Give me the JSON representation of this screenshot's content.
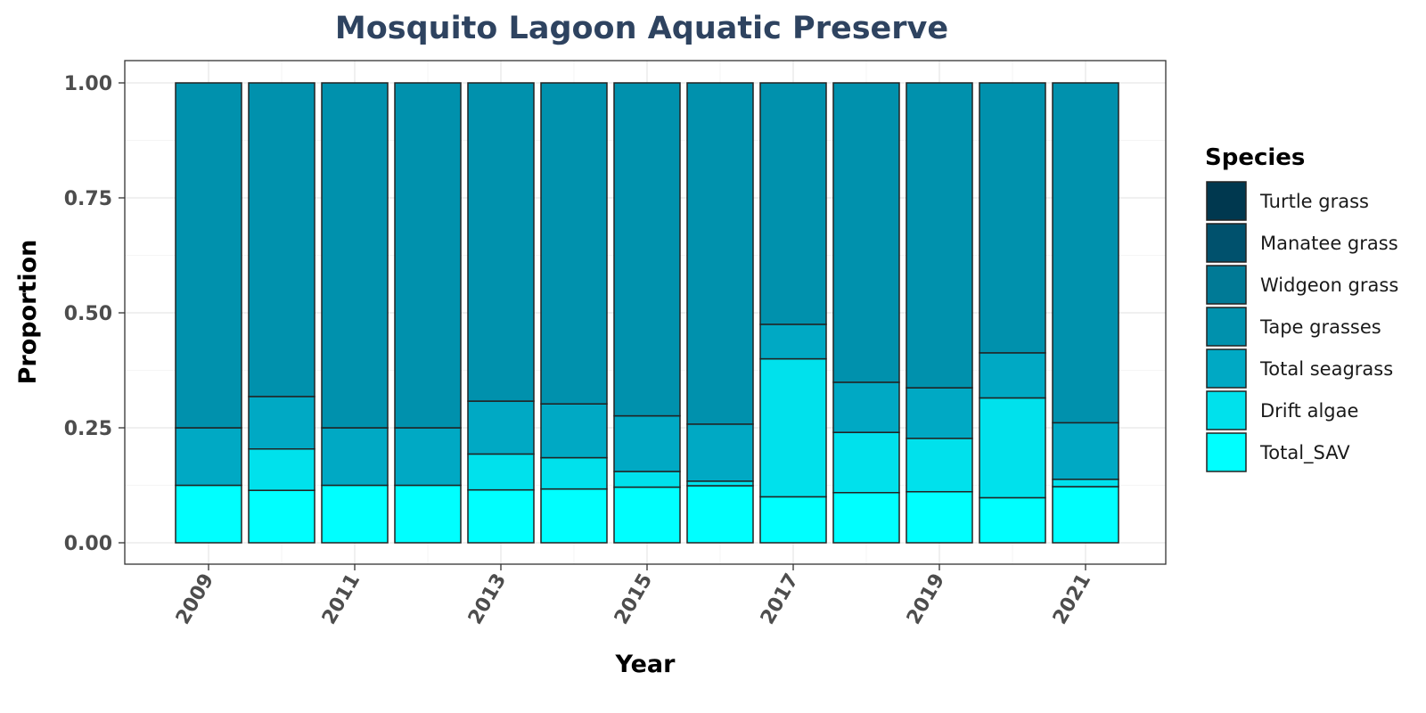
{
  "chart_data": {
    "type": "bar",
    "stacked": true,
    "title": "Mosquito Lagoon Aquatic Preserve",
    "xlabel": "Year",
    "ylabel": "Proportion",
    "ylim": [
      0,
      1
    ],
    "yticks": [
      "0.00",
      "0.25",
      "0.50",
      "0.75",
      "1.00"
    ],
    "ytick_values": [
      0,
      0.25,
      0.5,
      0.75,
      1.0
    ],
    "xticks": [
      "2009",
      "2011",
      "2013",
      "2015",
      "2017",
      "2019",
      "2021"
    ],
    "categories": [
      "2009",
      "2010",
      "2011",
      "2012",
      "2013",
      "2014",
      "2015",
      "2016",
      "2017",
      "2018",
      "2019",
      "2020",
      "2021"
    ],
    "legend_title": "Species",
    "legend_position": "right",
    "grid": true,
    "series": [
      {
        "name": "Turtle grass",
        "color": "#00384f",
        "values": [
          0,
          0,
          0,
          0,
          0,
          0,
          0,
          0,
          0,
          0,
          0,
          0,
          0
        ]
      },
      {
        "name": "Manatee grass",
        "color": "#00516d",
        "values": [
          0,
          0,
          0,
          0,
          0,
          0,
          0,
          0,
          0,
          0,
          0,
          0,
          0
        ]
      },
      {
        "name": "Widgeon grass",
        "color": "#007a96",
        "values": [
          0,
          0,
          0,
          0,
          0,
          0,
          0,
          0,
          0,
          0,
          0,
          0,
          0
        ]
      },
      {
        "name": "Tape grasses",
        "color": "#0091ad",
        "values": [
          0.75,
          0.682,
          0.75,
          0.75,
          0.692,
          0.698,
          0.724,
          0.742,
          0.525,
          0.651,
          0.663,
          0.587,
          0.739
        ]
      },
      {
        "name": "Total seagrass",
        "color": "#00a9c4",
        "values": [
          0.125,
          0.114,
          0.125,
          0.125,
          0.115,
          0.117,
          0.121,
          0.124,
          0.075,
          0.109,
          0.11,
          0.098,
          0.123
        ]
      },
      {
        "name": "Drift algae",
        "color": "#00e1ec",
        "values": [
          0,
          0.09,
          0,
          0,
          0.078,
          0.068,
          0.034,
          0.01,
          0.3,
          0.131,
          0.116,
          0.217,
          0.016
        ]
      },
      {
        "name": "Total_SAV",
        "color": "#00ffff",
        "values": [
          0.125,
          0.114,
          0.125,
          0.125,
          0.115,
          0.117,
          0.121,
          0.124,
          0.1,
          0.109,
          0.111,
          0.098,
          0.122
        ]
      }
    ]
  }
}
